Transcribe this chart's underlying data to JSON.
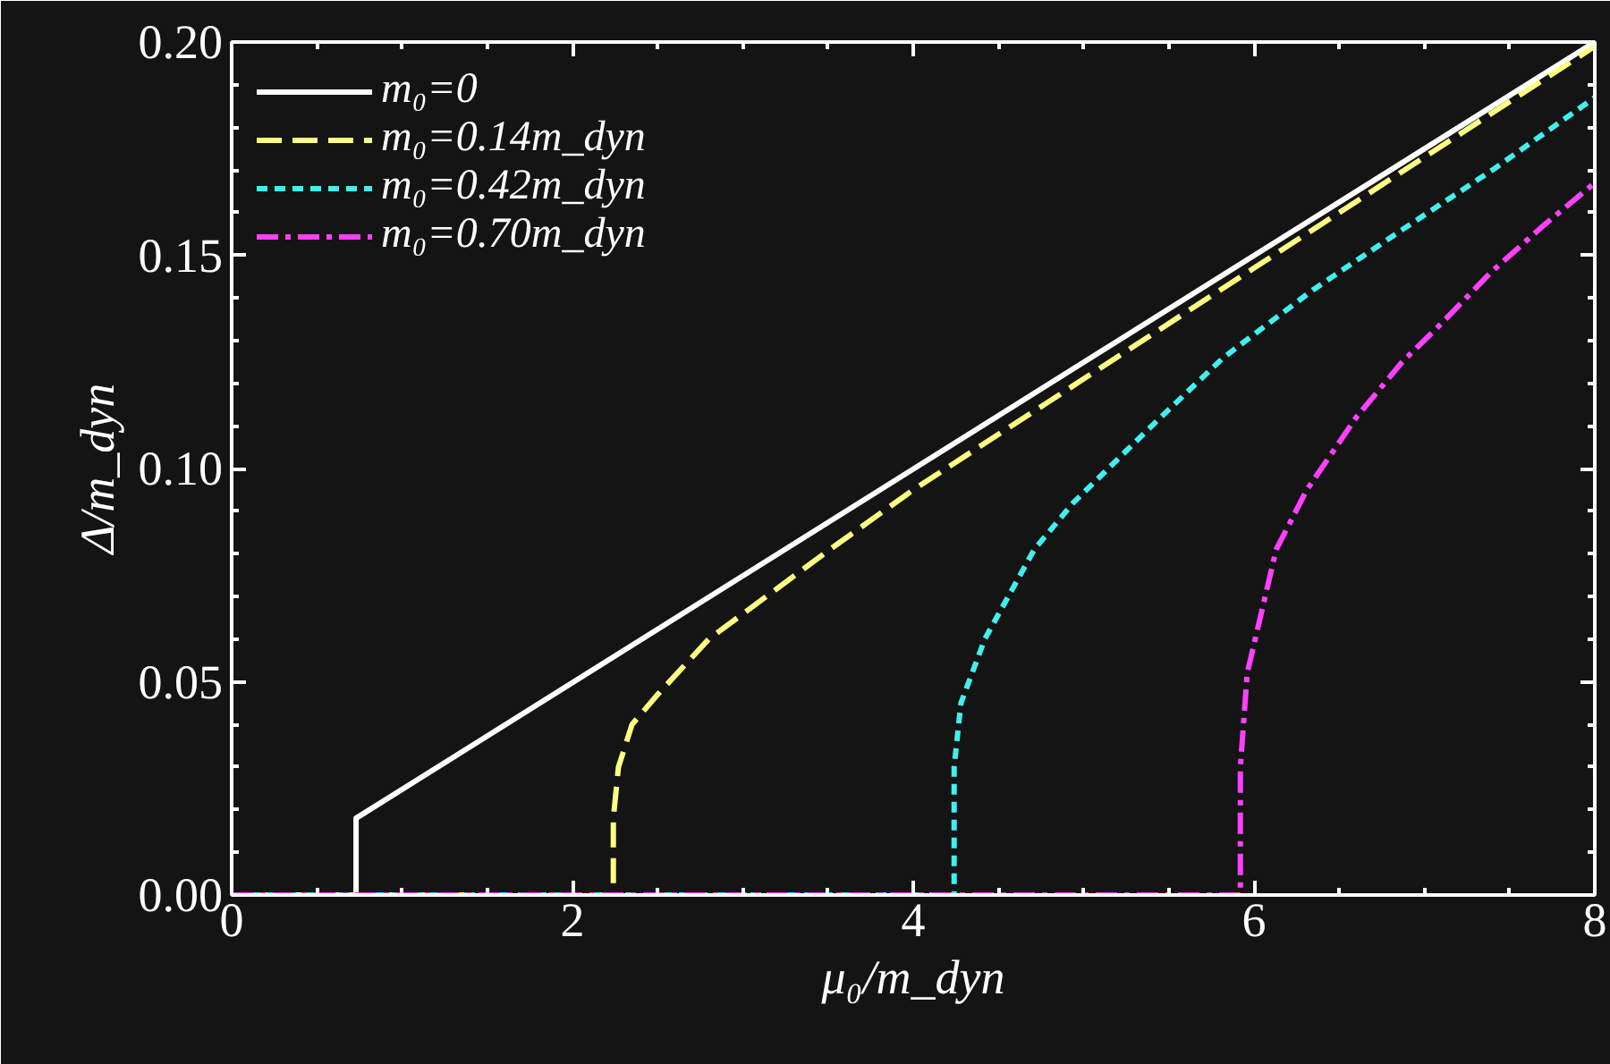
{
  "chart_data": {
    "type": "line",
    "xlabel": "μ₀/m_dyn",
    "ylabel": "Δ/m_dyn",
    "xlim": [
      0,
      8
    ],
    "ylim": [
      0,
      0.2
    ],
    "xticks": [
      0,
      2,
      4,
      6,
      8
    ],
    "yticks": [
      {
        "value": 0,
        "label": "0.00"
      },
      {
        "value": 0.05,
        "label": "0.05"
      },
      {
        "value": 0.1,
        "label": "0.10"
      },
      {
        "value": 0.15,
        "label": "0.15"
      },
      {
        "value": 0.2,
        "label": "0.20"
      }
    ],
    "grid": false,
    "legend": "top left",
    "series": [
      {
        "name": "m₀=0",
        "color": "#ffffff",
        "line_style": "solid",
        "x": [
          0,
          0.73,
          0.73,
          8
        ],
        "values": [
          0,
          0,
          0.018,
          0.2
        ]
      },
      {
        "name": "m₀=0.14m_dyn",
        "color": "#ffff80",
        "line_style": "long_dash",
        "x": [
          0,
          2.24,
          2.24,
          2.27,
          2.35,
          2.5,
          2.8,
          3.51,
          4,
          5,
          6,
          7,
          8
        ],
        "values": [
          0,
          0,
          0.018,
          0.03,
          0.04,
          0.047,
          0.06,
          0.081,
          0.095,
          0.121,
          0.147,
          0.173,
          0.199
        ]
      },
      {
        "name": "m₀=0.42m_dyn",
        "color": "#40f0f0",
        "line_style": "dashed",
        "x": [
          0,
          4.24,
          4.24,
          4.28,
          4.42,
          4.71,
          4.94,
          5.4,
          5.82,
          6.35,
          6.87,
          7.4,
          8
        ],
        "values": [
          0,
          0,
          0.03,
          0.045,
          0.06,
          0.081,
          0.092,
          0.11,
          0.126,
          0.142,
          0.156,
          0.17,
          0.187
        ]
      },
      {
        "name": "m₀=0.70m_dyn",
        "color": "#ff40ff",
        "line_style": "dashdot",
        "x": [
          0,
          5.92,
          5.92,
          5.96,
          6.13,
          6.31,
          6.6,
          6.87,
          7.1,
          7.39,
          7.7,
          8
        ],
        "values": [
          0,
          0,
          0.03,
          0.052,
          0.081,
          0.095,
          0.112,
          0.125,
          0.134,
          0.146,
          0.157,
          0.167
        ]
      }
    ]
  }
}
